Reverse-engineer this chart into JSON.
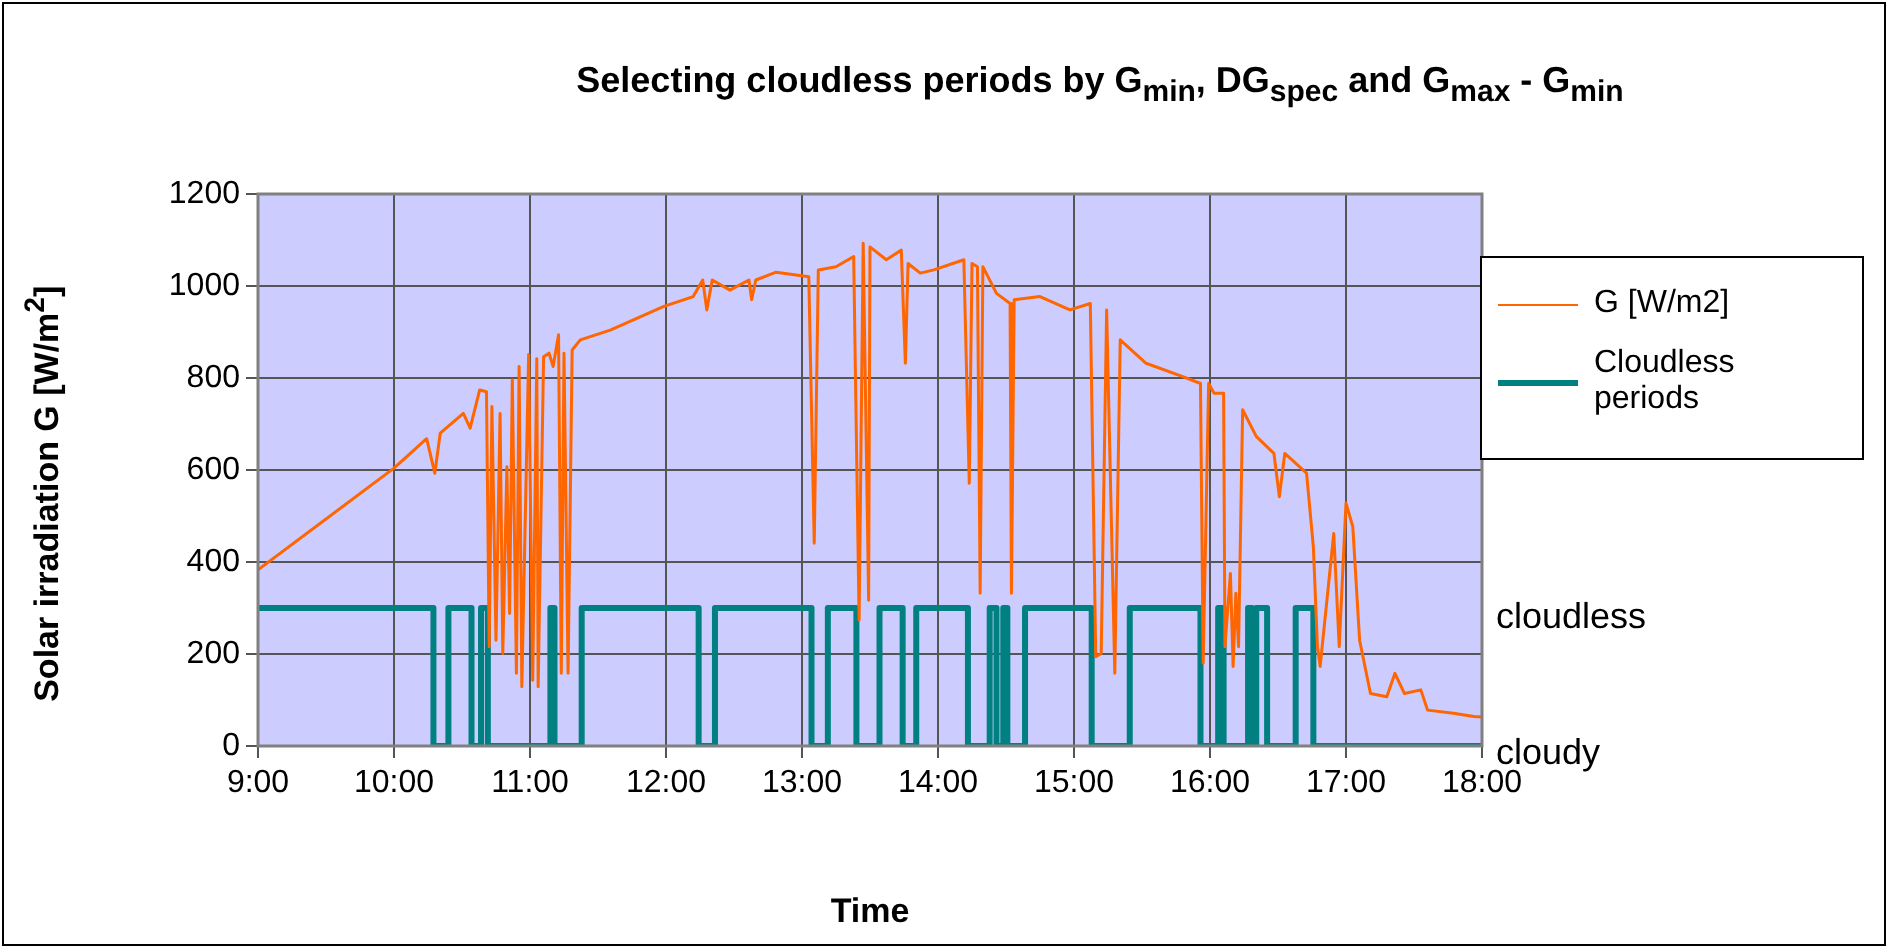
{
  "chart_data": {
    "type": "line",
    "title": "Selecting cloudless periods by G$_{min}$, DG$_{spec}$ and G$_{max}$ - G$_{min}$",
    "xlabel": "Time",
    "ylabel": "Solar irradiation G [W/m$^{2}$]",
    "xlim": [
      9,
      18
    ],
    "xticks": [
      {
        "value": 9,
        "label": "9:00"
      },
      {
        "value": 10,
        "label": "10:00"
      },
      {
        "value": 11,
        "label": "11:00"
      },
      {
        "value": 12,
        "label": "12:00"
      },
      {
        "value": 13,
        "label": "13:00"
      },
      {
        "value": 14,
        "label": "14:00"
      },
      {
        "value": 15,
        "label": "15:00"
      },
      {
        "value": 16,
        "label": "16:00"
      },
      {
        "value": 17,
        "label": "17:00"
      },
      {
        "value": 18,
        "label": "18:00"
      }
    ],
    "ylim": [
      0,
      1200
    ],
    "yticks": [
      0,
      200,
      400,
      600,
      800,
      1000,
      1200
    ],
    "grid": true,
    "legend": "right",
    "marker": "none",
    "line_style": "solid",
    "annotations": [
      "cloudless",
      "cloudy"
    ],
    "series": [
      {
        "name": "G [W/m2]",
        "type": "line",
        "color": "#ff6600",
        "x": [
          9.0,
          10.0,
          10.24,
          10.3,
          10.34,
          10.51,
          10.56,
          10.63,
          10.68,
          10.7,
          10.72,
          10.75,
          10.78,
          10.8,
          10.83,
          10.85,
          10.87,
          10.9,
          10.92,
          10.94,
          10.99,
          11.02,
          11.05,
          11.06,
          11.1,
          11.14,
          11.17,
          11.21,
          11.23,
          11.25,
          11.28,
          11.31,
          11.37,
          11.59,
          11.98,
          12.2,
          12.27,
          12.3,
          12.34,
          12.47,
          12.61,
          12.63,
          12.66,
          12.81,
          13.05,
          13.09,
          13.12,
          13.25,
          13.38,
          13.42,
          13.45,
          13.49,
          13.5,
          13.62,
          13.73,
          13.76,
          13.78,
          13.87,
          13.97,
          14.19,
          14.23,
          14.25,
          14.29,
          14.31,
          14.33,
          14.43,
          14.53,
          14.54,
          14.56,
          14.75,
          14.97,
          15.12,
          15.16,
          15.2,
          15.24,
          15.3,
          15.34,
          15.53,
          15.8,
          15.93,
          15.95,
          15.99,
          16.03,
          16.1,
          16.11,
          16.15,
          16.17,
          16.19,
          16.21,
          16.24,
          16.34,
          16.47,
          16.51,
          16.55,
          16.71,
          16.76,
          16.79,
          16.81,
          16.91,
          16.95,
          17.0,
          17.05,
          17.1,
          17.18,
          17.3,
          17.36,
          17.43,
          17.55,
          17.6,
          17.79,
          17.94,
          18.0
        ],
        "values": [
          383,
          604,
          668,
          593,
          680,
          723,
          691,
          774,
          770,
          216,
          738,
          230,
          723,
          201,
          607,
          288,
          796,
          158,
          825,
          129,
          851,
          143,
          842,
          129,
          846,
          854,
          825,
          894,
          158,
          854,
          158,
          861,
          883,
          904,
          955,
          977,
          1013,
          948,
          1013,
          991,
          1013,
          970,
          1013,
          1030,
          1020,
          441,
          1035,
          1042,
          1064,
          274,
          1093,
          317,
          1085,
          1057,
          1078,
          832,
          1049,
          1028,
          1035,
          1057,
          571,
          1049,
          1042,
          332,
          1042,
          984,
          962,
          332,
          970,
          977,
          948,
          962,
          194,
          201,
          948,
          158,
          883,
          832,
          803,
          788,
          180,
          788,
          767,
          767,
          216,
          375,
          173,
          332,
          216,
          731,
          673,
          636,
          542,
          636,
          593,
          433,
          216,
          173,
          462,
          216,
          528,
          477,
          230,
          114,
          107,
          158,
          114,
          122,
          78,
          71,
          64,
          63
        ]
      },
      {
        "name": "Cloudless periods",
        "type": "step",
        "color": "#008080",
        "x": [
          9.0,
          10.29,
          10.4,
          10.57,
          10.64,
          10.69,
          11.15,
          11.18,
          11.38,
          12.24,
          12.36,
          13.07,
          13.19,
          13.4,
          13.57,
          13.74,
          13.84,
          14.22,
          14.38,
          14.43,
          14.48,
          14.51,
          14.64,
          15.13,
          15.41,
          15.93,
          16.06,
          16.1,
          16.28,
          16.31,
          16.34,
          16.42,
          16.63,
          16.76,
          18.0
        ],
        "values": [
          300,
          0,
          300,
          0,
          300,
          0,
          300,
          0,
          300,
          0,
          300,
          0,
          300,
          0,
          300,
          0,
          300,
          0,
          300,
          0,
          300,
          0,
          300,
          0,
          300,
          0,
          300,
          0,
          300,
          0,
          300,
          0,
          300,
          0,
          0
        ]
      }
    ]
  }
}
